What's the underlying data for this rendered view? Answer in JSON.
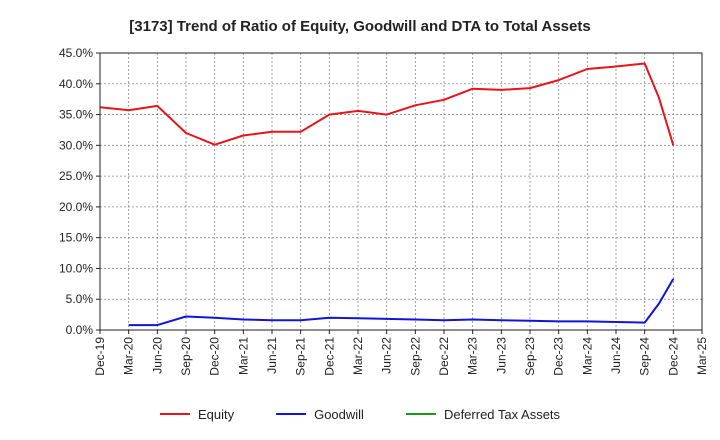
{
  "chart_data": {
    "type": "line",
    "title": "[3173]  Trend of Ratio of Equity, Goodwill and DTA to Total Assets",
    "xlabel": "",
    "ylabel": "",
    "x": [
      "Dec-19",
      "Mar-20",
      "Jun-20",
      "Sep-20",
      "Dec-20",
      "Mar-21",
      "Jun-21",
      "Sep-21",
      "Dec-21",
      "Mar-22",
      "Jun-22",
      "Sep-22",
      "Dec-22",
      "Mar-23",
      "Jun-23",
      "Sep-23",
      "Dec-23",
      "Mar-24",
      "Jun-24",
      "Sep-24",
      "Dec-24",
      "Mar-25"
    ],
    "ylim": [
      0,
      45
    ],
    "yticks": [
      "0.0%",
      "5.0%",
      "10.0%",
      "15.0%",
      "20.0%",
      "25.0%",
      "30.0%",
      "35.0%",
      "40.0%",
      "45.0%"
    ],
    "grid": true,
    "legend_position": "bottom",
    "series": [
      {
        "name": "Equity",
        "color": "#e8141b",
        "points": [
          [
            0,
            36.2
          ],
          [
            1,
            35.7
          ],
          [
            2,
            36.4
          ],
          [
            3,
            32.0
          ],
          [
            4,
            30.1
          ],
          [
            5,
            31.6
          ],
          [
            6,
            32.2
          ],
          [
            7,
            32.2
          ],
          [
            8,
            35.0
          ],
          [
            9,
            35.6
          ],
          [
            10,
            35.0
          ],
          [
            11,
            36.5
          ],
          [
            12,
            37.4
          ],
          [
            13,
            39.2
          ],
          [
            14,
            39.0
          ],
          [
            15,
            39.3
          ],
          [
            16,
            40.6
          ],
          [
            17,
            42.4
          ],
          [
            18,
            42.8
          ],
          [
            19,
            43.3
          ],
          [
            19.5,
            37.7
          ],
          [
            20,
            30.0
          ]
        ]
      },
      {
        "name": "Goodwill",
        "color": "#1414d8",
        "points": [
          [
            1,
            0.8
          ],
          [
            2,
            0.8
          ],
          [
            3,
            2.2
          ],
          [
            4,
            2.0
          ],
          [
            5,
            1.7
          ],
          [
            6,
            1.6
          ],
          [
            7,
            1.6
          ],
          [
            8,
            2.0
          ],
          [
            9,
            1.9
          ],
          [
            10,
            1.8
          ],
          [
            11,
            1.7
          ],
          [
            12,
            1.6
          ],
          [
            13,
            1.7
          ],
          [
            14,
            1.6
          ],
          [
            15,
            1.5
          ],
          [
            16,
            1.4
          ],
          [
            17,
            1.4
          ],
          [
            18,
            1.3
          ],
          [
            19,
            1.2
          ],
          [
            19.5,
            4.3
          ],
          [
            20,
            8.3
          ]
        ]
      },
      {
        "name": "Deferred Tax Assets",
        "color": "#1a9a1a",
        "points": []
      }
    ]
  }
}
